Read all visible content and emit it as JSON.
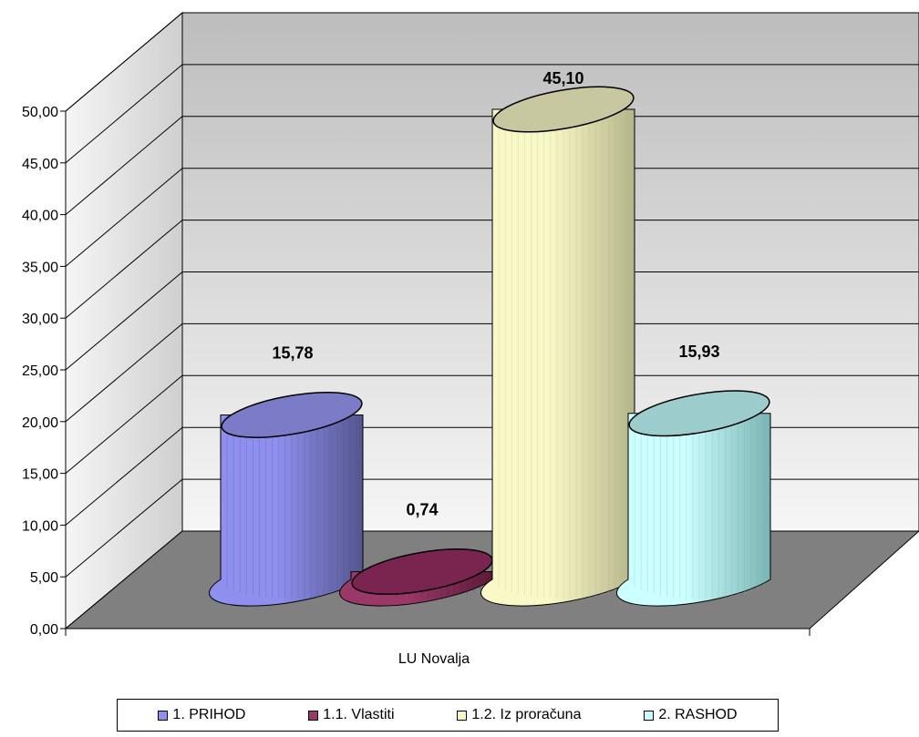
{
  "chart_data": {
    "type": "bar",
    "style": "3d-cylinder",
    "categories": [
      "LU Novalja"
    ],
    "series": [
      {
        "name": "1. PRIHOD",
        "values": [
          15.78
        ],
        "label": "15,78",
        "color": "#8f8fef",
        "dark": "#55558f",
        "top": "#7b7bc7"
      },
      {
        "name": "1.1. Vlastiti",
        "values": [
          0.74
        ],
        "label": "0,74",
        "color": "#9a3868",
        "dark": "#5b1a38",
        "top": "#7a2450"
      },
      {
        "name": "1.2. Iz proračuna",
        "values": [
          45.1
        ],
        "label": "45,10",
        "color": "#f9f9c8",
        "dark": "#b5b58a",
        "top": "#c8c8a0"
      },
      {
        "name": "2. RASHOD",
        "values": [
          15.93
        ],
        "label": "15,93",
        "color": "#ccffff",
        "dark": "#7ab4b4",
        "top": "#9ccccc"
      }
    ],
    "ylim": [
      0,
      50
    ],
    "yticks": [
      "0,00",
      "5,00",
      "10,00",
      "15,00",
      "20,00",
      "25,00",
      "30,00",
      "35,00",
      "40,00",
      "45,00",
      "50,00"
    ],
    "grid": true,
    "legend_position": "bottom",
    "title": "",
    "xlabel": "",
    "ylabel": "",
    "colors": {
      "floor": "#808080",
      "wall_top": "#c0c0c0",
      "wall_bottom": "#f4f4f4"
    }
  }
}
